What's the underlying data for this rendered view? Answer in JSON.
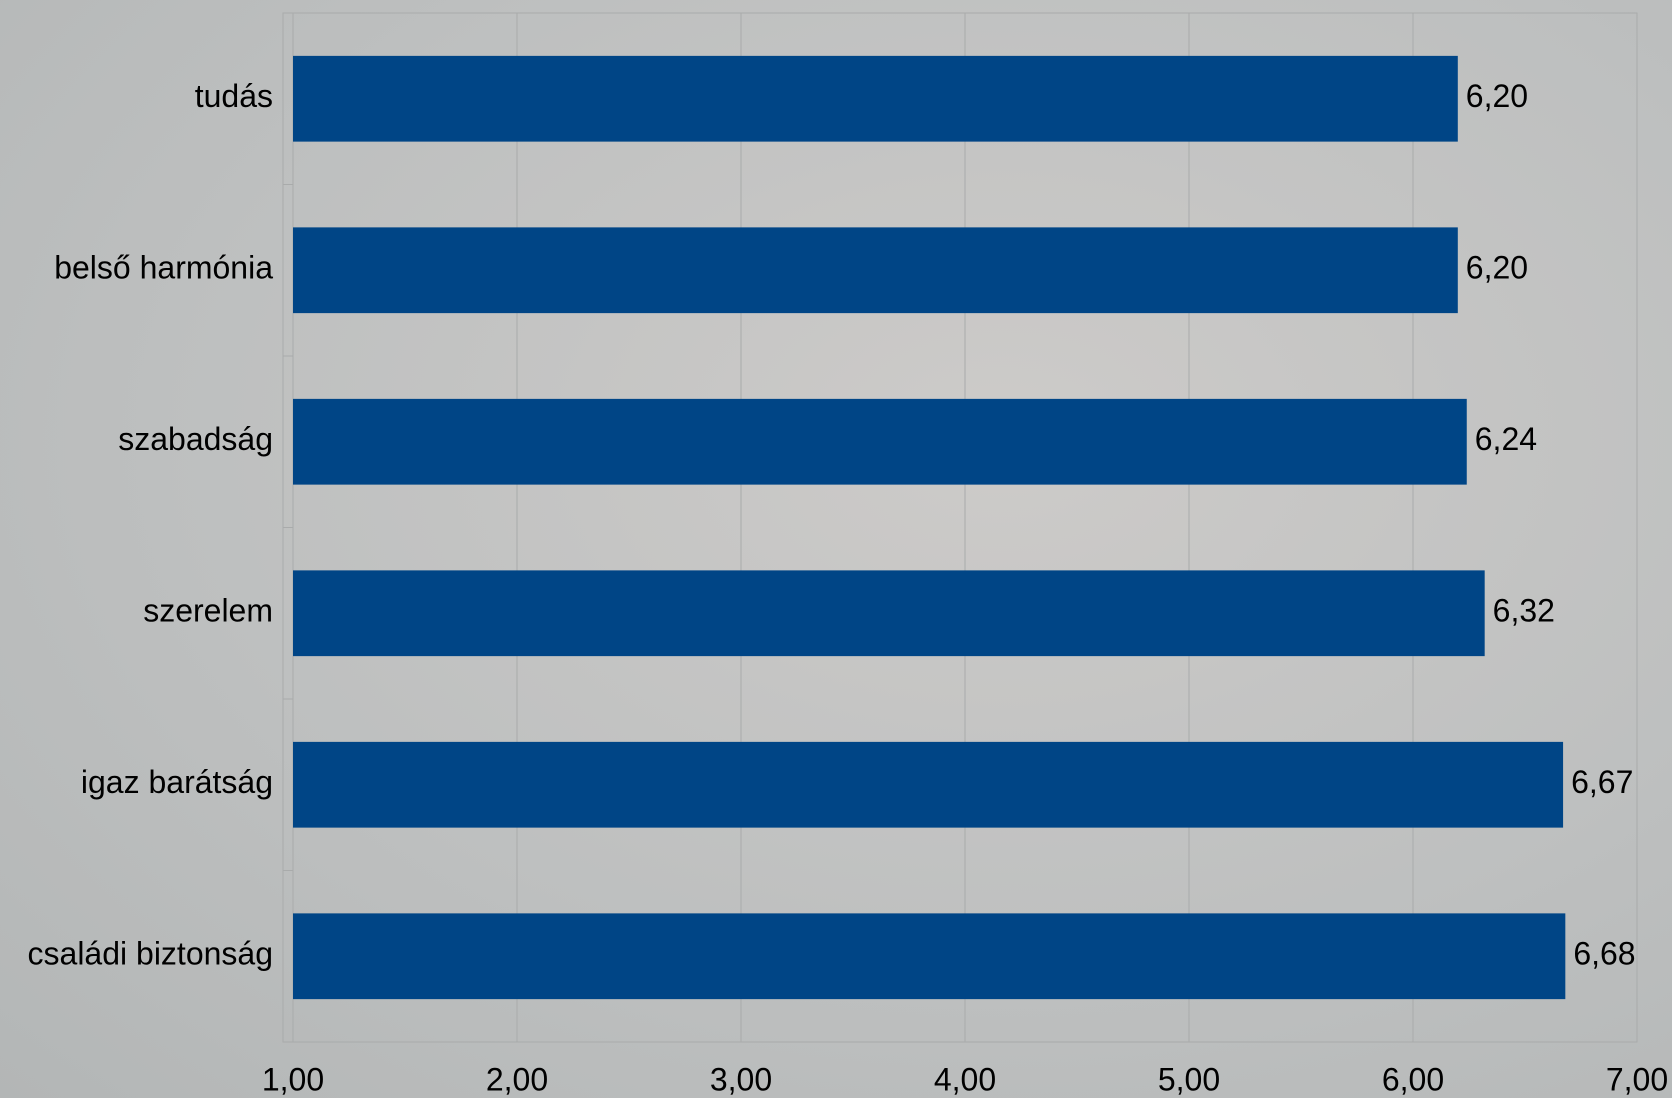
{
  "chart_data": {
    "type": "bar",
    "orientation": "horizontal",
    "categories": [
      "tudás",
      "belső harmónia",
      "szabadság",
      "szerelem",
      "igaz barátság",
      "családi biztonság"
    ],
    "values": [
      6.2,
      6.2,
      6.24,
      6.32,
      6.67,
      6.68
    ],
    "value_labels": [
      "6,20",
      "6,20",
      "6,24",
      "6,32",
      "6,67",
      "6,68"
    ],
    "color": "#004586",
    "xlim": [
      1,
      7
    ],
    "xticks": [
      {
        "value": 1,
        "label": "1,00"
      },
      {
        "value": 2,
        "label": "2,00"
      },
      {
        "value": 3,
        "label": "3,00"
      },
      {
        "value": 4,
        "label": "4,00"
      },
      {
        "value": 5,
        "label": "5,00"
      },
      {
        "value": 6,
        "label": "6,00"
      },
      {
        "value": 7,
        "label": "7,00"
      }
    ],
    "grid": true
  }
}
